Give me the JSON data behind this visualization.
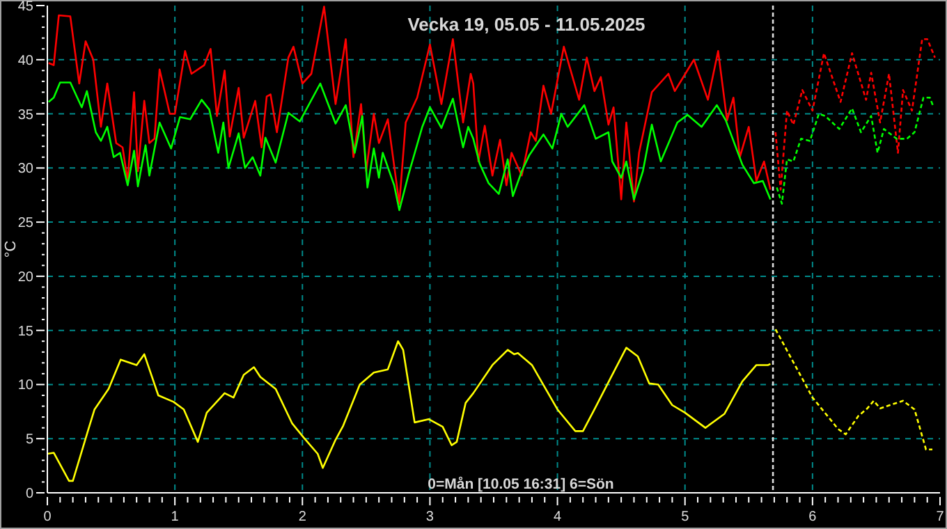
{
  "chart_data": {
    "type": "line",
    "title": "Vecka 19, 05.05 - 11.05.2025",
    "ylabel": "°C",
    "annotations": [
      "0=Mån [10.05 16:31] 6=Sön"
    ],
    "xlim": [
      0,
      7
    ],
    "ylim": [
      0,
      45
    ],
    "xticks": [
      0,
      {
        "value": 0.1,
        "label": null
      },
      {
        "value": 0.2,
        "label": null
      },
      {
        "value": 0.3,
        "label": null
      },
      {
        "value": 0.4,
        "label": null
      },
      {
        "value": 0.5,
        "label": null
      },
      {
        "value": 0.6,
        "label": null
      },
      {
        "value": 0.7,
        "label": null
      },
      {
        "value": 0.8,
        "label": null
      },
      {
        "value": 0.9,
        "label": null
      },
      1,
      {
        "value": 1.1,
        "label": null
      },
      {
        "value": 1.2,
        "label": null
      },
      {
        "value": 1.3,
        "label": null
      },
      {
        "value": 1.4,
        "label": null
      },
      {
        "value": 1.5,
        "label": null
      },
      {
        "value": 1.6,
        "label": null
      },
      {
        "value": 1.7,
        "label": null
      },
      {
        "value": 1.8,
        "label": null
      },
      {
        "value": 1.9,
        "label": null
      },
      2,
      {
        "value": 2.1,
        "label": null
      },
      {
        "value": 2.2,
        "label": null
      },
      {
        "value": 2.3,
        "label": null
      },
      {
        "value": 2.4,
        "label": null
      },
      {
        "value": 2.5,
        "label": null
      },
      {
        "value": 2.6,
        "label": null
      },
      {
        "value": 2.7,
        "label": null
      },
      {
        "value": 2.8,
        "label": null
      },
      {
        "value": 2.9,
        "label": null
      },
      3,
      {
        "value": 3.1,
        "label": null
      },
      {
        "value": 3.2,
        "label": null
      },
      {
        "value": 3.3,
        "label": null
      },
      {
        "value": 3.4,
        "label": null
      },
      {
        "value": 3.5,
        "label": null
      },
      {
        "value": 3.6,
        "label": null
      },
      {
        "value": 3.7,
        "label": null
      },
      {
        "value": 3.8,
        "label": null
      },
      {
        "value": 3.9,
        "label": null
      },
      4,
      {
        "value": 4.1,
        "label": null
      },
      {
        "value": 4.2,
        "label": null
      },
      {
        "value": 4.3,
        "label": null
      },
      {
        "value": 4.4,
        "label": null
      },
      {
        "value": 4.5,
        "label": null
      },
      {
        "value": 4.6,
        "label": null
      },
      {
        "value": 4.7,
        "label": null
      },
      {
        "value": 4.8,
        "label": null
      },
      {
        "value": 4.9,
        "label": null
      },
      5,
      {
        "value": 5.1,
        "label": null
      },
      {
        "value": 5.2,
        "label": null
      },
      {
        "value": 5.3,
        "label": null
      },
      {
        "value": 5.4,
        "label": null
      },
      {
        "value": 5.5,
        "label": null
      },
      {
        "value": 5.6,
        "label": null
      },
      {
        "value": 5.7,
        "label": null
      },
      {
        "value": 5.8,
        "label": null
      },
      {
        "value": 5.9,
        "label": null
      },
      6,
      {
        "value": 6.1,
        "label": null
      },
      {
        "value": 6.2,
        "label": null
      },
      {
        "value": 6.3,
        "label": null
      },
      {
        "value": 6.4,
        "label": null
      },
      {
        "value": 6.5,
        "label": null
      },
      {
        "value": 6.6,
        "label": null
      },
      {
        "value": 6.7,
        "label": null
      },
      {
        "value": 6.8,
        "label": null
      },
      {
        "value": 6.9,
        "label": null
      },
      7
    ],
    "yticks": [
      0,
      {
        "value": 1,
        "label": null
      },
      {
        "value": 2,
        "label": null
      },
      {
        "value": 3,
        "label": null
      },
      {
        "value": 4,
        "label": null
      },
      5,
      {
        "value": 6,
        "label": null
      },
      {
        "value": 7,
        "label": null
      },
      {
        "value": 8,
        "label": null
      },
      {
        "value": 9,
        "label": null
      },
      10,
      {
        "value": 11,
        "label": null
      },
      {
        "value": 12,
        "label": null
      },
      {
        "value": 13,
        "label": null
      },
      {
        "value": 14,
        "label": null
      },
      15,
      {
        "value": 16,
        "label": null
      },
      {
        "value": 17,
        "label": null
      },
      {
        "value": 18,
        "label": null
      },
      {
        "value": 19,
        "label": null
      },
      20,
      {
        "value": 21,
        "label": null
      },
      {
        "value": 22,
        "label": null
      },
      {
        "value": 23,
        "label": null
      },
      {
        "value": 24,
        "label": null
      },
      25,
      {
        "value": 26,
        "label": null
      },
      {
        "value": 27,
        "label": null
      },
      {
        "value": 28,
        "label": null
      },
      {
        "value": 29,
        "label": null
      },
      30,
      {
        "value": 31,
        "label": null
      },
      {
        "value": 32,
        "label": null
      },
      {
        "value": 33,
        "label": null
      },
      {
        "value": 34,
        "label": null
      },
      35,
      {
        "value": 36,
        "label": null
      },
      {
        "value": 37,
        "label": null
      },
      {
        "value": 38,
        "label": null
      },
      {
        "value": 39,
        "label": null
      },
      40,
      {
        "value": 41,
        "label": null
      },
      {
        "value": 42,
        "label": null
      },
      {
        "value": 43,
        "label": null
      },
      {
        "value": 44,
        "label": null
      },
      45
    ],
    "grid": true,
    "ref_lines": [
      {
        "axis": "x",
        "value": 5.69,
        "color": "#e0e0e0",
        "line_style": "dashed"
      }
    ],
    "series": [
      {
        "color": "#ff0000",
        "line_style": "solid",
        "x": [
          0.01,
          0.05,
          0.09,
          0.18,
          0.25,
          0.3,
          0.36,
          0.42,
          0.47,
          0.54,
          0.59,
          0.63,
          0.68,
          0.71,
          0.76,
          0.8,
          0.84,
          0.88,
          0.96,
          1.0,
          1.08,
          1.13,
          1.23,
          1.28,
          1.33,
          1.39,
          1.43,
          1.5,
          1.54,
          1.63,
          1.68,
          1.72,
          1.75,
          1.8,
          1.89,
          1.93,
          2.0,
          2.07,
          2.17,
          2.26,
          2.34,
          2.4,
          2.46,
          2.5,
          2.56,
          2.6,
          2.67,
          2.76,
          2.81,
          2.9,
          3.0,
          3.09,
          3.18,
          3.26,
          3.32,
          3.34,
          3.38,
          3.43,
          3.49,
          3.55,
          3.6,
          3.64,
          3.72,
          3.79,
          3.83,
          3.89,
          3.95,
          4.05,
          4.17,
          4.23,
          4.29,
          4.34,
          4.4,
          4.44,
          4.5,
          4.54,
          4.6,
          4.64,
          4.74,
          4.87,
          4.92,
          5.07,
          5.18,
          5.26,
          5.33,
          5.38,
          5.43,
          5.5,
          5.56,
          5.62,
          5.67
        ],
        "values": [
          39.7,
          39.5,
          44.1,
          44.0,
          37.8,
          41.7,
          40.0,
          33.8,
          37.8,
          32.3,
          31.9,
          28.8,
          37.0,
          29.7,
          36.2,
          32.3,
          32.7,
          39.1,
          35.0,
          35.0,
          40.8,
          38.7,
          39.5,
          41.0,
          34.8,
          39.0,
          32.9,
          37.4,
          32.8,
          36.2,
          31.9,
          36.6,
          36.8,
          33.3,
          40.2,
          41.2,
          37.8,
          38.7,
          44.9,
          35.9,
          41.9,
          31.0,
          35.9,
          29.7,
          35.0,
          32.3,
          34.5,
          26.7,
          34.2,
          36.5,
          41.4,
          35.9,
          41.9,
          34.2,
          38.7,
          37.8,
          30.6,
          33.9,
          29.3,
          32.6,
          28.4,
          31.4,
          29.3,
          33.3,
          32.5,
          37.6,
          35.0,
          41.2,
          36.3,
          40.2,
          37.1,
          38.4,
          34.0,
          35.6,
          27.1,
          34.2,
          26.9,
          31.4,
          37.0,
          38.7,
          37.1,
          40.0,
          36.3,
          40.8,
          34.4,
          36.5,
          31.0,
          33.8,
          28.8,
          30.6,
          28.0
        ]
      },
      {
        "color": "#00ff00",
        "line_style": "solid",
        "x": [
          0.01,
          0.05,
          0.1,
          0.18,
          0.27,
          0.31,
          0.38,
          0.42,
          0.47,
          0.52,
          0.57,
          0.63,
          0.68,
          0.71,
          0.77,
          0.8,
          0.88,
          0.97,
          1.04,
          1.12,
          1.21,
          1.27,
          1.34,
          1.38,
          1.42,
          1.5,
          1.55,
          1.61,
          1.67,
          1.71,
          1.79,
          1.89,
          1.98,
          2.14,
          2.26,
          2.34,
          2.41,
          2.47,
          2.51,
          2.56,
          2.6,
          2.63,
          2.72,
          2.76,
          2.83,
          2.94,
          3.0,
          3.09,
          3.18,
          3.26,
          3.3,
          3.34,
          3.39,
          3.46,
          3.54,
          3.61,
          3.65,
          3.72,
          3.78,
          3.89,
          3.96,
          4.03,
          4.08,
          4.21,
          4.3,
          4.4,
          4.43,
          4.5,
          4.54,
          4.6,
          4.67,
          4.74,
          4.81,
          4.94,
          5.02,
          5.13,
          5.25,
          5.32,
          5.45,
          5.54,
          5.61,
          5.67
        ],
        "values": [
          36.1,
          36.5,
          37.9,
          37.9,
          35.6,
          37.1,
          33.3,
          32.5,
          33.8,
          31.0,
          31.4,
          28.4,
          31.6,
          28.3,
          32.1,
          29.3,
          34.2,
          31.8,
          34.7,
          34.5,
          36.3,
          35.4,
          31.4,
          34.2,
          30.0,
          33.2,
          30.0,
          31.0,
          29.3,
          32.8,
          30.5,
          35.1,
          34.3,
          37.8,
          34.1,
          35.8,
          31.4,
          34.8,
          28.2,
          31.8,
          29.1,
          31.4,
          28.4,
          26.1,
          29.3,
          33.8,
          35.6,
          33.7,
          36.4,
          31.9,
          33.8,
          32.7,
          30.4,
          28.6,
          27.6,
          30.8,
          27.4,
          29.7,
          31.2,
          33.1,
          31.8,
          35.0,
          33.8,
          35.8,
          32.7,
          33.3,
          30.6,
          29.1,
          30.6,
          27.1,
          29.7,
          34.0,
          30.6,
          34.2,
          34.9,
          33.8,
          35.8,
          34.4,
          30.3,
          28.6,
          28.8,
          27.1
        ]
      },
      {
        "color": "#ffff00",
        "line_style": "solid",
        "x": [
          0.0,
          0.05,
          0.17,
          0.2,
          0.32,
          0.37,
          0.48,
          0.575,
          0.7,
          0.76,
          0.87,
          0.99,
          1.07,
          1.18,
          1.25,
          1.39,
          1.46,
          1.54,
          1.62,
          1.67,
          1.79,
          1.92,
          2.01,
          2.12,
          2.16,
          2.26,
          2.32,
          2.45,
          2.56,
          2.67,
          2.75,
          2.79,
          2.88,
          2.99,
          3.1,
          3.17,
          3.21,
          3.28,
          3.34,
          3.49,
          3.61,
          3.66,
          3.69,
          3.8,
          4.0,
          4.14,
          4.2,
          4.29,
          4.43,
          4.54,
          4.63,
          4.72,
          4.79,
          4.9,
          5.0,
          5.16,
          5.31,
          5.45,
          5.56,
          5.65,
          5.67
        ],
        "values": [
          3.6,
          3.7,
          1.1,
          1.1,
          5.8,
          7.7,
          9.6,
          12.3,
          11.8,
          12.8,
          9.0,
          8.4,
          7.7,
          4.7,
          7.4,
          9.2,
          8.8,
          10.9,
          11.6,
          10.7,
          9.6,
          6.4,
          5.1,
          3.6,
          2.3,
          4.9,
          6.2,
          10.0,
          11.1,
          11.4,
          14.0,
          13.2,
          6.5,
          6.8,
          6.1,
          4.4,
          4.7,
          8.3,
          9.2,
          11.8,
          13.2,
          12.8,
          12.9,
          11.8,
          7.7,
          5.7,
          5.7,
          7.7,
          10.9,
          13.4,
          12.6,
          10.1,
          10.0,
          8.1,
          7.4,
          6.0,
          7.3,
          10.3,
          11.8,
          11.8,
          11.9
        ]
      },
      {
        "color": "#ff0000",
        "line_style": "dashed",
        "x": [
          5.71,
          5.75,
          5.8,
          5.85,
          5.92,
          6.0,
          6.09,
          6.22,
          6.31,
          6.42,
          6.46,
          6.53,
          6.6,
          6.67,
          6.71,
          6.78,
          6.86,
          6.9,
          6.96
        ],
        "values": [
          33.3,
          28.0,
          35.3,
          34.0,
          37.2,
          35.3,
          40.6,
          36.1,
          40.6,
          36.3,
          38.8,
          34.2,
          38.7,
          31.4,
          37.2,
          35.3,
          41.9,
          41.9,
          40.2
        ]
      },
      {
        "color": "#00ff00",
        "line_style": "dashed",
        "x": [
          5.72,
          5.76,
          5.8,
          5.85,
          5.91,
          5.98,
          6.05,
          6.1,
          6.21,
          6.31,
          6.38,
          6.46,
          6.51,
          6.56,
          6.66,
          6.74,
          6.8,
          6.87,
          6.92,
          6.95
        ],
        "values": [
          28.2,
          26.7,
          30.8,
          30.6,
          32.7,
          32.5,
          35.0,
          34.8,
          33.6,
          35.5,
          33.3,
          34.8,
          31.4,
          33.6,
          32.7,
          32.7,
          33.3,
          36.5,
          36.5,
          35.6
        ]
      },
      {
        "color": "#ffff00",
        "line_style": "dashed",
        "x": [
          5.71,
          6.0,
          6.2,
          6.26,
          6.36,
          6.43,
          6.48,
          6.53,
          6.71,
          6.8,
          6.89,
          6.94
        ],
        "values": [
          15.1,
          8.8,
          5.9,
          5.4,
          7.1,
          7.8,
          8.5,
          7.8,
          8.5,
          7.7,
          4.0,
          4.0
        ]
      }
    ]
  }
}
